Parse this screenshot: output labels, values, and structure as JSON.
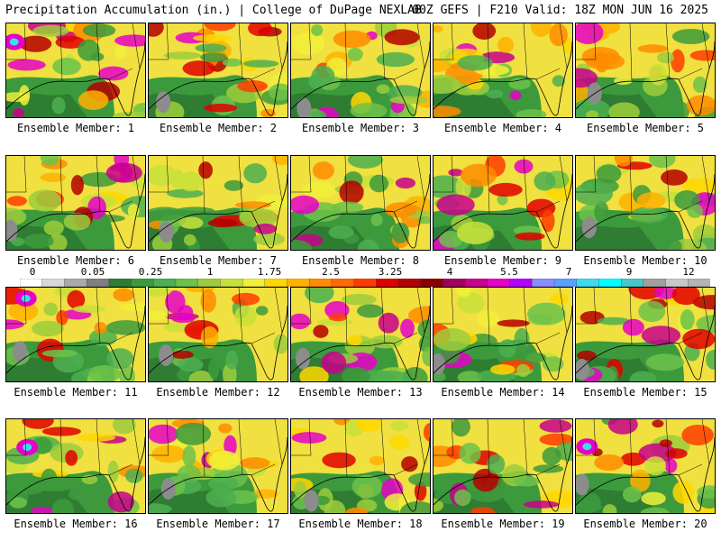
{
  "header": {
    "left": "Precipitation Accumulation (in.) | College of DuPage NEXLAB",
    "right": "00Z GEFS | F210 Valid: 18Z MON JUN 16 2025"
  },
  "label_prefix": "Ensemble Member: ",
  "members": [
    1,
    2,
    3,
    4,
    5,
    6,
    7,
    8,
    9,
    10,
    11,
    12,
    13,
    14,
    15,
    16,
    17,
    18,
    19,
    20
  ],
  "colorbar": {
    "labels": [
      "0",
      "0.05",
      "0.25",
      "1",
      "1.75",
      "2.5",
      "3.25",
      "4",
      "5.5",
      "7",
      "9",
      "12"
    ],
    "colors": [
      "#ffffff",
      "#d8d8d8",
      "#a9a9a9",
      "#7f7f7f",
      "#2e7d32",
      "#3c9a3c",
      "#4caf50",
      "#6cc24a",
      "#9ccc3c",
      "#c8e03a",
      "#f0f03a",
      "#ffd700",
      "#ffb000",
      "#ff8c00",
      "#ff6a00",
      "#ff3c00",
      "#e00000",
      "#b40000",
      "#8b0000",
      "#a0005a",
      "#c8008c",
      "#e600c8",
      "#b400ff",
      "#8c8cff",
      "#5aa0ff",
      "#3cdcf0",
      "#00ffff",
      "#46c8c8",
      "#a0a0a0",
      "#c8c8c8",
      "#b4b4b4"
    ]
  }
}
